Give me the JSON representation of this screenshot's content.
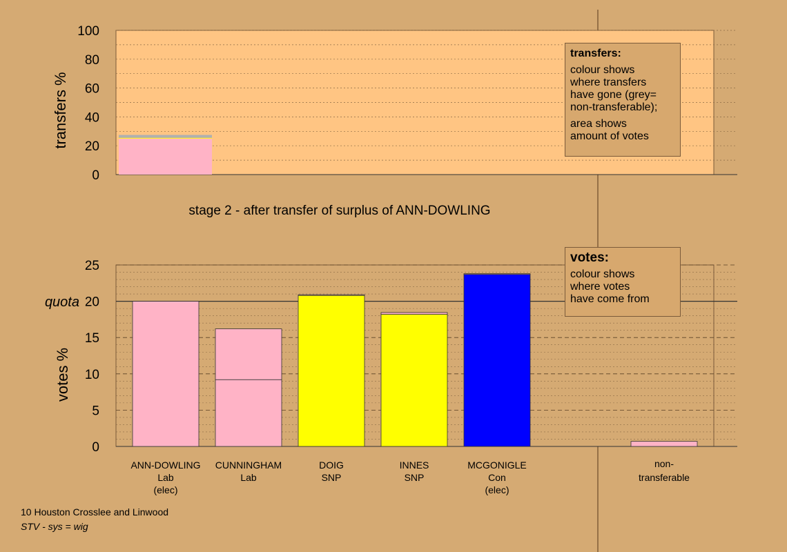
{
  "chart_data": [
    {
      "type": "bar",
      "panel": "transfers",
      "ylabel": "transfers %",
      "ylim": [
        0,
        100
      ],
      "yticks": [
        "0",
        "20",
        "40",
        "60",
        "80",
        "100"
      ],
      "categories": [
        "ANN-DOWLING"
      ],
      "stack": [
        {
          "color": "#ffb3c6",
          "value": 25
        },
        {
          "color": "#ffff00",
          "value": 0.5
        },
        {
          "color": "#b0b0b0",
          "value": 2
        }
      ],
      "caption": "stage 2 - after transfer of surplus of ANN-DOWLING"
    },
    {
      "type": "bar",
      "panel": "votes",
      "ylabel": "votes %",
      "ylim": [
        0,
        25
      ],
      "yticks": [
        "0",
        "5",
        "10",
        "15",
        "20",
        "25"
      ],
      "quota": 20,
      "quota_label": "quota",
      "categories": [
        {
          "name": "ANN-DOWLING",
          "party": "Lab",
          "status": "(elec)"
        },
        {
          "name": "CUNNINGHAM",
          "party": "Lab",
          "status": ""
        },
        {
          "name": "DOIG",
          "party": "SNP",
          "status": ""
        },
        {
          "name": "INNES",
          "party": "SNP",
          "status": ""
        },
        {
          "name": "MCGONIGLE",
          "party": "Con",
          "status": "(elec)"
        }
      ],
      "bars": [
        {
          "segments": [
            {
              "value": 20,
              "color": "#ffb3c6"
            }
          ]
        },
        {
          "segments": [
            {
              "value": 9.2,
              "color": "#ffb3c6"
            },
            {
              "value": 7.0,
              "color": "#ffb3c6"
            }
          ]
        },
        {
          "segments": [
            {
              "value": 20.8,
              "color": "#ffff00"
            },
            {
              "value": 0.1,
              "color": "#ffb3c6"
            }
          ]
        },
        {
          "segments": [
            {
              "value": 18.2,
              "color": "#ffff00"
            },
            {
              "value": 0.25,
              "color": "#ffb3c6"
            }
          ]
        },
        {
          "segments": [
            {
              "value": 23.7,
              "color": "#0000ff"
            },
            {
              "value": 0.1,
              "color": "#ffb3c6"
            }
          ]
        }
      ],
      "nontransferable": {
        "label_line1": "non-",
        "label_line2": "transferable",
        "value": 0.7,
        "color": "#ffb3c6"
      }
    }
  ],
  "legend_transfers": {
    "title": "transfers:",
    "line1": "colour shows",
    "line2": "where transfers",
    "line3": "have gone (grey=",
    "line4": "non-transferable);",
    "line5": "area shows",
    "line6": "amount of votes"
  },
  "legend_votes": {
    "title": "votes:",
    "line1": "colour shows",
    "line2": "where votes",
    "line3": "have come from"
  },
  "footer": {
    "line1": "10 Houston Crosslee and Linwood",
    "line2": "STV - sys = wig"
  },
  "colors": {
    "background": "#d5aa73",
    "panel": "#ffc583",
    "pink": "#ffb3c6",
    "yellow": "#ffff00",
    "blue": "#0000ff",
    "grey": "#b0b0b0"
  }
}
